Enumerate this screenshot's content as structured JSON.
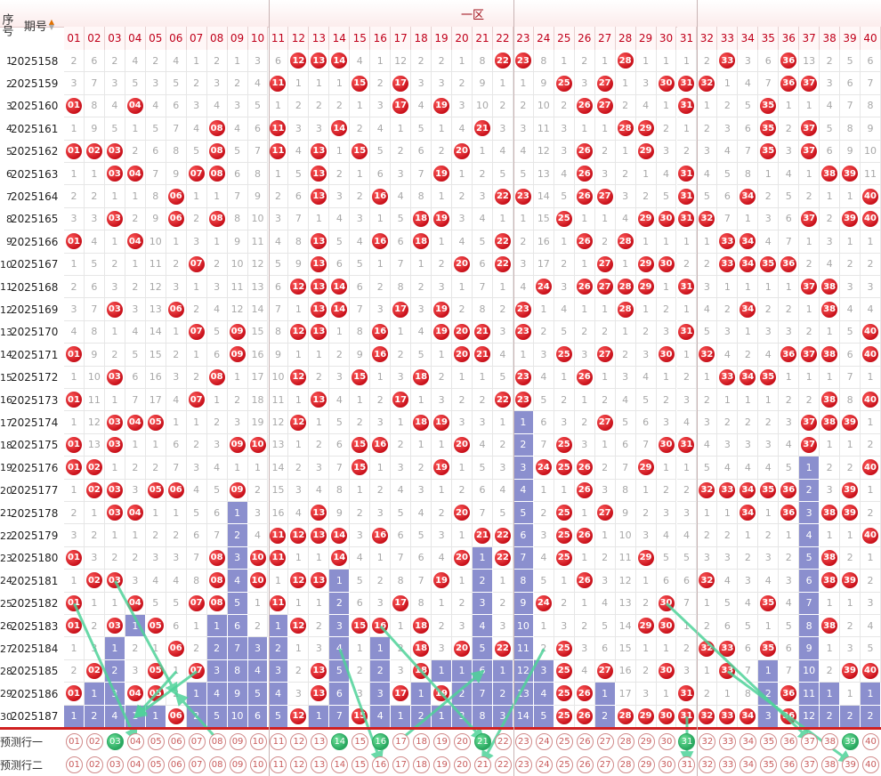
{
  "header": {
    "seq_label": "序号",
    "period_label": "期号",
    "zone_label": "一区",
    "sort_icon": "sort-arrows-icon"
  },
  "columns": [
    "01",
    "02",
    "03",
    "04",
    "05",
    "06",
    "07",
    "08",
    "09",
    "10",
    "11",
    "12",
    "13",
    "14",
    "15",
    "16",
    "17",
    "18",
    "19",
    "20",
    "21",
    "22",
    "23",
    "24",
    "25",
    "26",
    "27",
    "28",
    "29",
    "30",
    "31",
    "32",
    "33",
    "34",
    "35",
    "36",
    "37",
    "38",
    "39",
    "40"
  ],
  "rows": [
    {
      "seq": "1",
      "period": "2025158",
      "cells": [
        2,
        6,
        2,
        4,
        2,
        4,
        1,
        2,
        1,
        3,
        6,
        "12",
        "13",
        "14",
        4,
        1,
        12,
        2,
        2,
        1,
        8,
        "22",
        "23",
        8,
        1,
        2,
        1,
        "28",
        1,
        1,
        1,
        2,
        "33",
        3,
        6,
        "36",
        13,
        2,
        5,
        6
      ]
    },
    {
      "seq": "2",
      "period": "2025159",
      "cells": [
        3,
        7,
        3,
        5,
        3,
        5,
        2,
        3,
        2,
        4,
        "11",
        1,
        1,
        1,
        "15",
        2,
        "17",
        3,
        3,
        2,
        9,
        1,
        1,
        9,
        "25",
        3,
        "27",
        1,
        3,
        "30",
        "31",
        "32",
        1,
        4,
        7,
        "36",
        "37",
        3,
        6,
        7
      ]
    },
    {
      "seq": "3",
      "period": "2025160",
      "cells": [
        "01",
        8,
        4,
        "04",
        4,
        6,
        3,
        4,
        3,
        5,
        1,
        2,
        2,
        2,
        1,
        3,
        "17",
        4,
        "19",
        3,
        10,
        2,
        2,
        10,
        2,
        "26",
        "27",
        2,
        4,
        1,
        "31",
        1,
        2,
        5,
        "35",
        1,
        1,
        4,
        7,
        8
      ]
    },
    {
      "seq": "4",
      "period": "2025161",
      "cells": [
        1,
        9,
        5,
        1,
        5,
        7,
        4,
        "08",
        4,
        6,
        "11",
        3,
        3,
        "14",
        2,
        4,
        1,
        5,
        1,
        4,
        "21",
        3,
        3,
        11,
        3,
        1,
        1,
        "28",
        "29",
        2,
        1,
        2,
        3,
        6,
        "35",
        2,
        "37",
        5,
        8,
        9
      ]
    },
    {
      "seq": "5",
      "period": "2025162",
      "cells": [
        "01",
        "02",
        "03",
        2,
        6,
        8,
        5,
        "08",
        5,
        7,
        "11",
        4,
        "13",
        1,
        "15",
        5,
        2,
        6,
        2,
        "20",
        1,
        4,
        4,
        12,
        3,
        "26",
        2,
        1,
        "29",
        3,
        2,
        3,
        4,
        7,
        "35",
        3,
        "37",
        6,
        9,
        10
      ]
    },
    {
      "seq": "6",
      "period": "2025163",
      "cells": [
        1,
        1,
        "03",
        "04",
        7,
        9,
        "07",
        "08",
        6,
        8,
        1,
        5,
        "13",
        2,
        1,
        6,
        3,
        7,
        "19",
        1,
        2,
        5,
        5,
        13,
        4,
        "26",
        3,
        2,
        1,
        4,
        "31",
        4,
        5,
        8,
        1,
        4,
        1,
        "38",
        "39",
        11
      ]
    },
    {
      "seq": "7",
      "period": "2025164",
      "cells": [
        2,
        2,
        1,
        1,
        8,
        "06",
        1,
        1,
        7,
        9,
        2,
        6,
        "13",
        3,
        2,
        "16",
        4,
        8,
        1,
        2,
        3,
        "22",
        "23",
        14,
        5,
        "26",
        "27",
        3,
        2,
        5,
        "31",
        5,
        6,
        "34",
        2,
        5,
        2,
        1,
        1,
        "40"
      ]
    },
    {
      "seq": "8",
      "period": "2025165",
      "cells": [
        3,
        3,
        "03",
        2,
        9,
        "06",
        2,
        "08",
        8,
        10,
        3,
        7,
        1,
        4,
        3,
        1,
        5,
        "18",
        "19",
        3,
        4,
        1,
        1,
        15,
        "25",
        1,
        1,
        4,
        "29",
        "30",
        "31",
        "32",
        7,
        1,
        3,
        6,
        "37",
        2,
        "39",
        "40"
      ]
    },
    {
      "seq": "9",
      "period": "2025166",
      "cells": [
        "01",
        4,
        1,
        "04",
        10,
        1,
        3,
        1,
        9,
        11,
        4,
        8,
        "13",
        5,
        4,
        "16",
        6,
        "18",
        1,
        4,
        5,
        "22",
        2,
        16,
        1,
        "26",
        2,
        "28",
        1,
        1,
        1,
        1,
        "33",
        "34",
        4,
        7,
        1,
        3,
        1,
        1
      ]
    },
    {
      "seq": "10",
      "period": "2025167",
      "cells": [
        1,
        5,
        2,
        1,
        11,
        2,
        "07",
        2,
        10,
        12,
        5,
        9,
        "13",
        6,
        5,
        1,
        7,
        1,
        2,
        "20",
        6,
        "22",
        3,
        17,
        2,
        1,
        "27",
        1,
        "29",
        "30",
        2,
        2,
        "33",
        "34",
        "35",
        "36",
        2,
        4,
        2,
        2
      ]
    },
    {
      "seq": "11",
      "period": "2025168",
      "cells": [
        2,
        6,
        3,
        2,
        12,
        3,
        1,
        3,
        11,
        13,
        6,
        "12",
        "13",
        "14",
        6,
        2,
        8,
        2,
        3,
        1,
        7,
        1,
        4,
        "24",
        3,
        "26",
        "27",
        "28",
        "29",
        1,
        "31",
        3,
        1,
        1,
        1,
        1,
        "37",
        "38",
        3,
        3
      ]
    },
    {
      "seq": "12",
      "period": "2025169",
      "cells": [
        3,
        7,
        "03",
        3,
        13,
        "06",
        2,
        4,
        12,
        14,
        7,
        1,
        "13",
        "14",
        7,
        3,
        "17",
        3,
        "19",
        2,
        8,
        2,
        "23",
        1,
        4,
        1,
        1,
        "28",
        1,
        2,
        1,
        4,
        2,
        "34",
        2,
        2,
        1,
        "38",
        4,
        4
      ]
    },
    {
      "seq": "13",
      "period": "2025170",
      "cells": [
        4,
        8,
        1,
        4,
        14,
        1,
        "07",
        5,
        "09",
        15,
        8,
        "12",
        "13",
        1,
        8,
        "16",
        1,
        4,
        "19",
        "20",
        "21",
        3,
        "23",
        2,
        5,
        2,
        2,
        1,
        2,
        3,
        "31",
        5,
        3,
        1,
        3,
        3,
        2,
        1,
        5,
        "40"
      ]
    },
    {
      "seq": "14",
      "period": "2025171",
      "cells": [
        "01",
        9,
        2,
        5,
        15,
        2,
        1,
        6,
        "09",
        16,
        9,
        1,
        1,
        2,
        9,
        "16",
        2,
        5,
        1,
        "20",
        "21",
        4,
        1,
        3,
        "25",
        3,
        "27",
        2,
        3,
        "30",
        1,
        "32",
        4,
        2,
        4,
        "36",
        "37",
        "38",
        6,
        "40"
      ]
    },
    {
      "seq": "15",
      "period": "2025172",
      "cells": [
        1,
        10,
        "03",
        6,
        16,
        3,
        2,
        "08",
        1,
        17,
        10,
        "12",
        2,
        3,
        "15",
        1,
        3,
        "18",
        2,
        1,
        1,
        5,
        "23",
        4,
        1,
        "26",
        1,
        3,
        4,
        1,
        2,
        1,
        "33",
        "34",
        "35",
        1,
        1,
        1,
        7,
        1
      ]
    },
    {
      "seq": "16",
      "period": "2025173",
      "cells": [
        "01",
        11,
        1,
        7,
        17,
        4,
        "07",
        1,
        2,
        18,
        11,
        1,
        "13",
        4,
        1,
        2,
        "17",
        1,
        3,
        2,
        2,
        "22",
        "23",
        5,
        2,
        1,
        2,
        4,
        5,
        2,
        3,
        2,
        1,
        1,
        1,
        2,
        2,
        "38",
        8,
        "40"
      ]
    },
    {
      "seq": "17",
      "period": "2025174",
      "cells": [
        1,
        12,
        "03",
        "04",
        "05",
        1,
        1,
        2,
        3,
        19,
        12,
        "12",
        1,
        5,
        2,
        3,
        1,
        "18",
        "19",
        3,
        3,
        1,
        "B1",
        6,
        3,
        2,
        "27",
        5,
        6,
        3,
        4,
        3,
        2,
        2,
        2,
        3,
        "37",
        "38",
        "39",
        1
      ]
    },
    {
      "seq": "18",
      "period": "2025175",
      "cells": [
        "01",
        13,
        "03",
        1,
        1,
        6,
        2,
        3,
        "09",
        "10",
        13,
        1,
        2,
        6,
        "15",
        "16",
        2,
        1,
        1,
        "20",
        4,
        2,
        "B2",
        7,
        "25",
        3,
        1,
        6,
        7,
        "30",
        "31",
        4,
        3,
        3,
        3,
        4,
        "37",
        1,
        1,
        2
      ]
    },
    {
      "seq": "19",
      "period": "2025176",
      "cells": [
        "01",
        "02",
        1,
        2,
        2,
        7,
        3,
        4,
        1,
        1,
        14,
        2,
        3,
        7,
        "15",
        1,
        3,
        2,
        "19",
        1,
        5,
        3,
        "B3",
        "24",
        "25",
        "26",
        2,
        7,
        "29",
        1,
        1,
        5,
        4,
        4,
        4,
        5,
        "B1",
        2,
        2,
        "40"
      ]
    },
    {
      "seq": "20",
      "period": "2025177",
      "cells": [
        1,
        "02",
        "03",
        3,
        "05",
        "06",
        4,
        5,
        "09",
        2,
        15,
        3,
        4,
        8,
        1,
        2,
        4,
        3,
        1,
        2,
        6,
        4,
        "B4",
        1,
        1,
        "26",
        3,
        8,
        1,
        2,
        2,
        "32",
        "33",
        "34",
        "35",
        "36",
        "B2",
        3,
        "39",
        1
      ]
    },
    {
      "seq": "21",
      "period": "2025178",
      "cells": [
        2,
        1,
        "03",
        "04",
        1,
        1,
        5,
        6,
        "B1",
        3,
        16,
        4,
        "13",
        9,
        2,
        3,
        5,
        4,
        2,
        "20",
        7,
        5,
        "B5",
        2,
        "25",
        1,
        "27",
        9,
        2,
        3,
        3,
        1,
        1,
        "34",
        1,
        "36",
        "B3",
        "38",
        "39",
        2
      ]
    },
    {
      "seq": "22",
      "period": "2025179",
      "cells": [
        3,
        2,
        1,
        1,
        2,
        2,
        6,
        7,
        "B2",
        4,
        "11",
        "12",
        "13",
        "14",
        3,
        "16",
        6,
        5,
        3,
        1,
        "21",
        "22",
        "B6",
        3,
        "25",
        "26",
        1,
        10,
        3,
        4,
        4,
        2,
        2,
        1,
        2,
        1,
        "B4",
        1,
        1,
        "40"
      ]
    },
    {
      "seq": "23",
      "period": "2025180",
      "cells": [
        "01",
        3,
        2,
        2,
        3,
        3,
        7,
        "08",
        "B3",
        "10",
        "11",
        1,
        1,
        "14",
        4,
        1,
        7,
        6,
        4,
        "20",
        "B1",
        "22",
        "B7",
        4,
        "25",
        1,
        2,
        11,
        "29",
        5,
        5,
        3,
        3,
        2,
        3,
        2,
        "B5",
        "38",
        2,
        1
      ]
    },
    {
      "seq": "24",
      "period": "2025181",
      "cells": [
        1,
        "02",
        "03",
        3,
        4,
        4,
        8,
        "08",
        "B4",
        "10",
        1,
        "12",
        "13",
        "B1",
        5,
        2,
        8,
        7,
        "19",
        1,
        "B2",
        1,
        "B8",
        5,
        1,
        "26",
        3,
        12,
        1,
        6,
        6,
        "32",
        4,
        3,
        4,
        3,
        "B6",
        "38",
        "39",
        2
      ]
    },
    {
      "seq": "25",
      "period": "2025182",
      "cells": [
        "01",
        1,
        1,
        "04",
        5,
        5,
        "07",
        "08",
        "B5",
        1,
        "11",
        1,
        1,
        "B2",
        6,
        3,
        "17",
        8,
        1,
        2,
        "B3",
        2,
        "B9",
        "24",
        2,
        1,
        4,
        13,
        2,
        "30",
        7,
        1,
        5,
        4,
        "35",
        4,
        "B7",
        1,
        1,
        3
      ]
    },
    {
      "seq": "26",
      "period": "2025183",
      "cells": [
        "01",
        2,
        "03",
        "B1",
        "05",
        6,
        1,
        "B1",
        "B6",
        2,
        "B1",
        "12",
        2,
        "B3",
        "15",
        "16",
        1,
        "18",
        2,
        3,
        "B4",
        3,
        "B10",
        1,
        3,
        2,
        5,
        14,
        "29",
        "30",
        1,
        2,
        6,
        5,
        1,
        5,
        "B8",
        "38",
        2,
        4
      ]
    },
    {
      "seq": "27",
      "period": "2025184",
      "cells": [
        1,
        3,
        "B1",
        2,
        1,
        "06",
        2,
        "B2",
        "B7",
        "B3",
        "B2",
        1,
        3,
        "B4",
        1,
        "B1",
        2,
        "18",
        3,
        "20",
        "B5",
        "22",
        "B11",
        2,
        "25",
        3,
        6,
        15,
        1,
        1,
        2,
        "32",
        "33",
        6,
        "35",
        6,
        "B9",
        1,
        3,
        5
      ]
    },
    {
      "seq": "28",
      "period": "2025185",
      "cells": [
        2,
        "02",
        "B2",
        3,
        "05",
        1,
        "07",
        "B3",
        "B8",
        "B4",
        "B3",
        2,
        "13",
        "B5",
        2,
        "B2",
        3,
        "18",
        "B1",
        "B1",
        "B6",
        "B1",
        "B12",
        "B3",
        "25",
        4,
        "27",
        16,
        2,
        "30",
        3,
        1,
        "33",
        7,
        "B1",
        7,
        "B10",
        2,
        "39",
        "40"
      ]
    },
    {
      "seq": "29",
      "period": "2025186",
      "cells": [
        "01",
        "B1",
        "B3",
        "04",
        "05",
        2,
        "B1",
        "B4",
        "B9",
        "B5",
        "B4",
        3,
        "13",
        "B6",
        3,
        "B3",
        "17",
        "B1",
        "19",
        "B2",
        "B7",
        "B2",
        "B13",
        "B4",
        "25",
        "26",
        "B1",
        17,
        3,
        1,
        "31",
        2,
        1,
        8,
        "B2",
        "36",
        "B11",
        "B1",
        1,
        "B1"
      ]
    },
    {
      "seq": "30",
      "period": "2025187",
      "cells": [
        "B1",
        "B2",
        "B4",
        "B1",
        "B1",
        "06",
        "B2",
        "B5",
        "B10",
        "B6",
        "B5",
        "12",
        "B1",
        "B7",
        "15",
        "B4",
        "B1",
        "B2",
        "B1",
        "B3",
        "B8",
        "B3",
        "B14",
        "B5",
        "25",
        "26",
        "B2",
        "28",
        "29",
        "30",
        "31",
        "32",
        "33",
        "34",
        "B3",
        "36",
        "B12",
        "B2",
        "B2",
        "B2"
      ]
    }
  ],
  "predictions": [
    {
      "label": "预测行一",
      "filled": [
        "03",
        "14",
        "16",
        "21",
        "31",
        "39"
      ]
    },
    {
      "label": "预测行二",
      "filled": []
    }
  ]
}
